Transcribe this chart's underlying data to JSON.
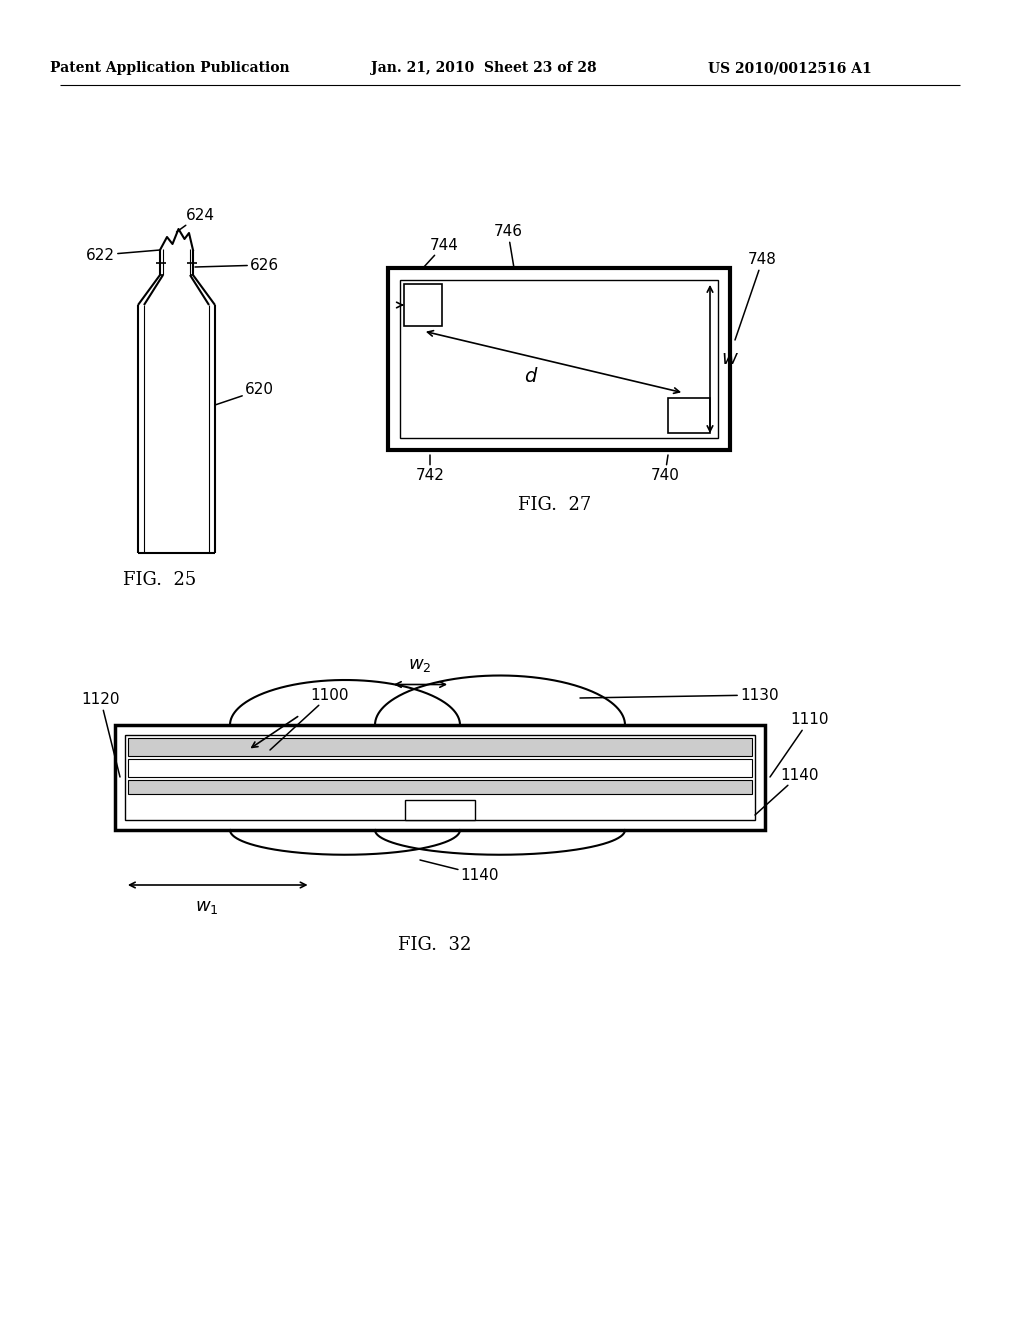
{
  "bg_color": "#ffffff",
  "header_left": "Patent Application Publication",
  "header_mid": "Jan. 21, 2010  Sheet 23 of 28",
  "header_right": "US 2010/0012516 A1"
}
